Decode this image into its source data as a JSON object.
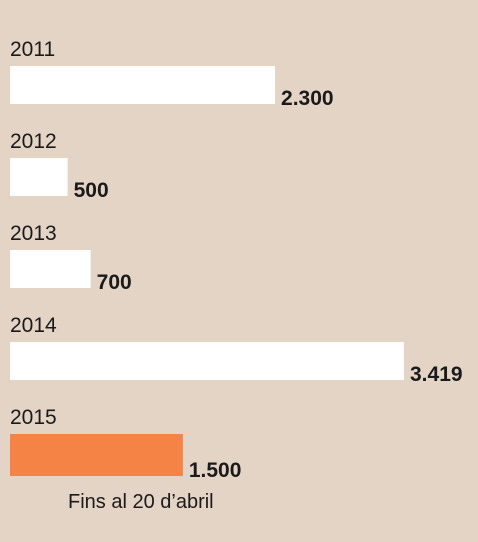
{
  "chart_data": {
    "type": "bar",
    "orientation": "horizontal",
    "categories": [
      "2011",
      "2012",
      "2013",
      "2014",
      "2015"
    ],
    "values": [
      2300,
      500,
      700,
      3419,
      1500
    ],
    "value_labels": [
      "2.300",
      "500",
      "700",
      "3.419",
      "1.500"
    ],
    "colors": [
      "#ffffff",
      "#ffffff",
      "#ffffff",
      "#ffffff",
      "#f58345"
    ],
    "annotation": "Fins al 20 d’abril"
  }
}
